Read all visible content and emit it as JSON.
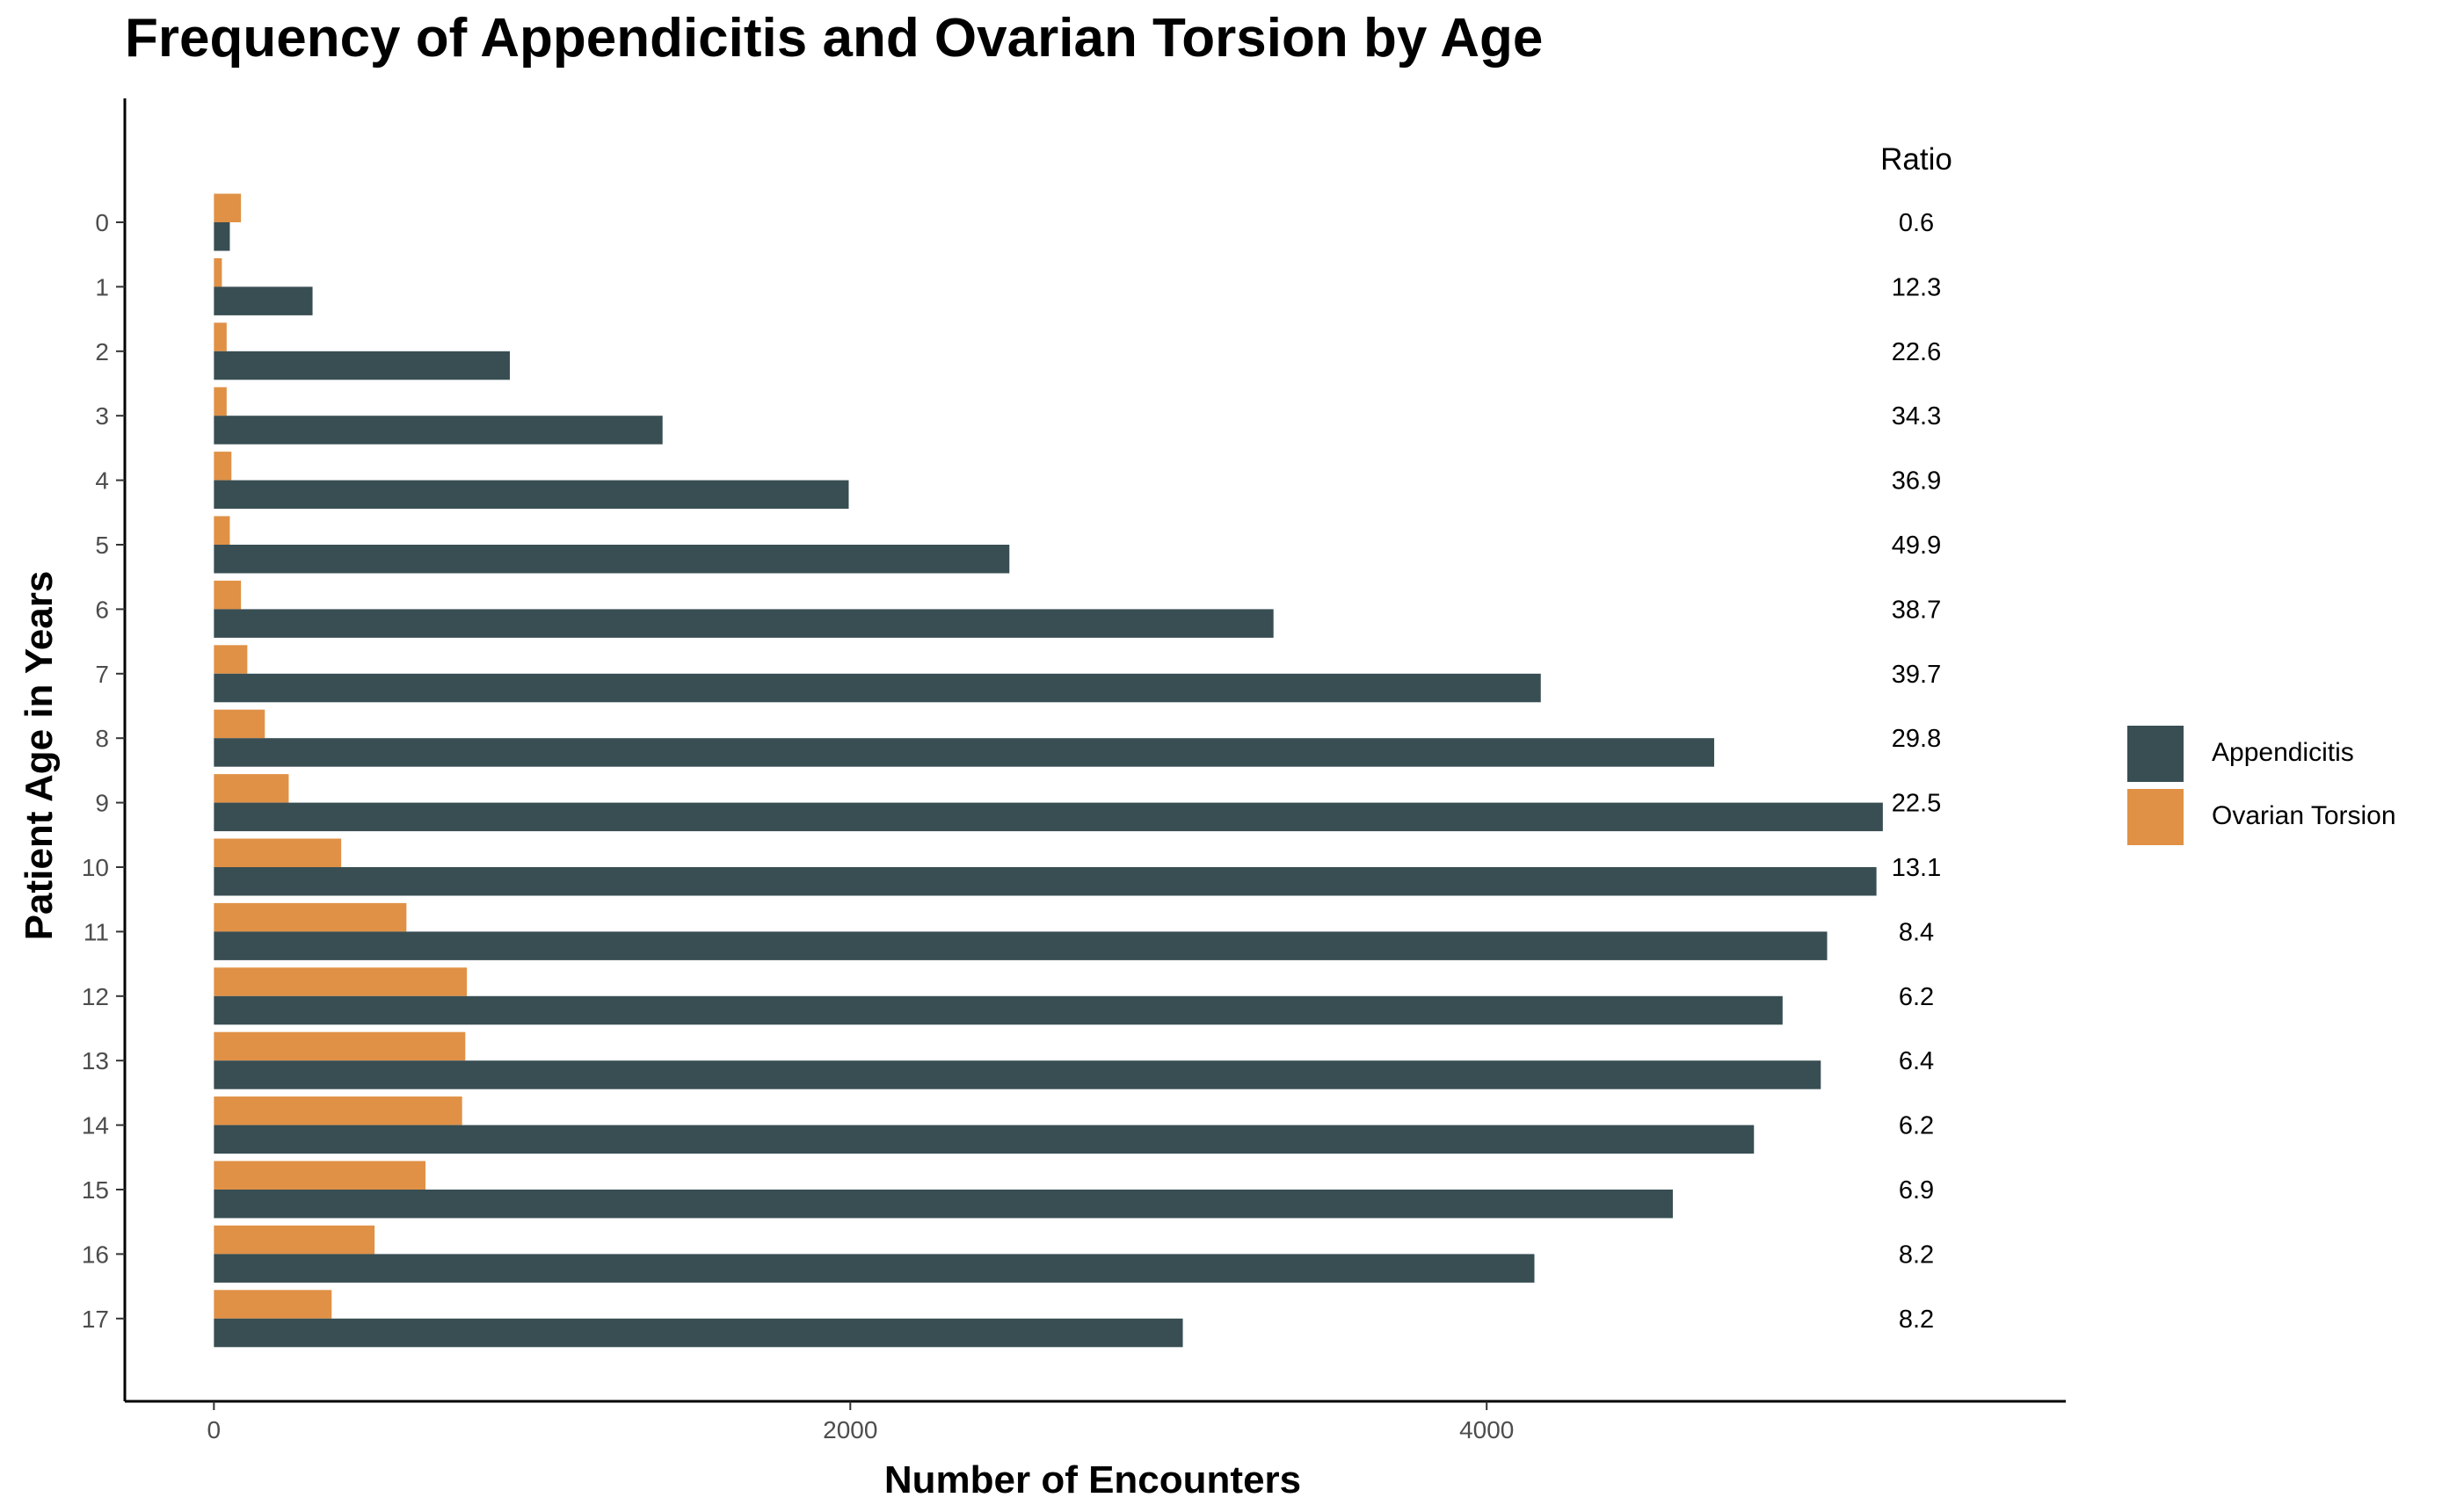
{
  "chart_data": {
    "type": "bar",
    "orientation": "horizontal",
    "title": "Frequency of Appendicitis and Ovarian Torsion by Age",
    "xlabel": "Number of Encounters",
    "ylabel": "Patient Age in Years",
    "xlim": [
      -280,
      5820
    ],
    "xticks": [
      "0",
      "2000",
      "4000"
    ],
    "categories": [
      "0",
      "1",
      "2",
      "3",
      "4",
      "5",
      "6",
      "7",
      "8",
      "9",
      "10",
      "11",
      "12",
      "13",
      "14",
      "15",
      "16",
      "17"
    ],
    "series": [
      {
        "name": "Appendicitis",
        "color": "#384e53",
        "values": [
          50,
          310,
          930,
          1410,
          1995,
          2500,
          3330,
          4170,
          4715,
          5245,
          5225,
          5070,
          4930,
          5050,
          4840,
          4585,
          4150,
          3045
        ]
      },
      {
        "name": "Ovarian Torsion",
        "color": "#e09146",
        "values": [
          85,
          25,
          40,
          40,
          55,
          50,
          85,
          105,
          160,
          235,
          400,
          605,
          795,
          790,
          780,
          665,
          505,
          370
        ]
      }
    ],
    "ratio_header": "Ratio",
    "ratios": [
      "0.6",
      "12.3",
      "22.6",
      "34.3",
      "36.9",
      "49.9",
      "38.7",
      "39.7",
      "29.8",
      "22.5",
      "13.1",
      "8.4",
      "6.2",
      "6.4",
      "6.2",
      "6.9",
      "8.2",
      "8.2"
    ],
    "grid": false,
    "legend_position": "right"
  }
}
